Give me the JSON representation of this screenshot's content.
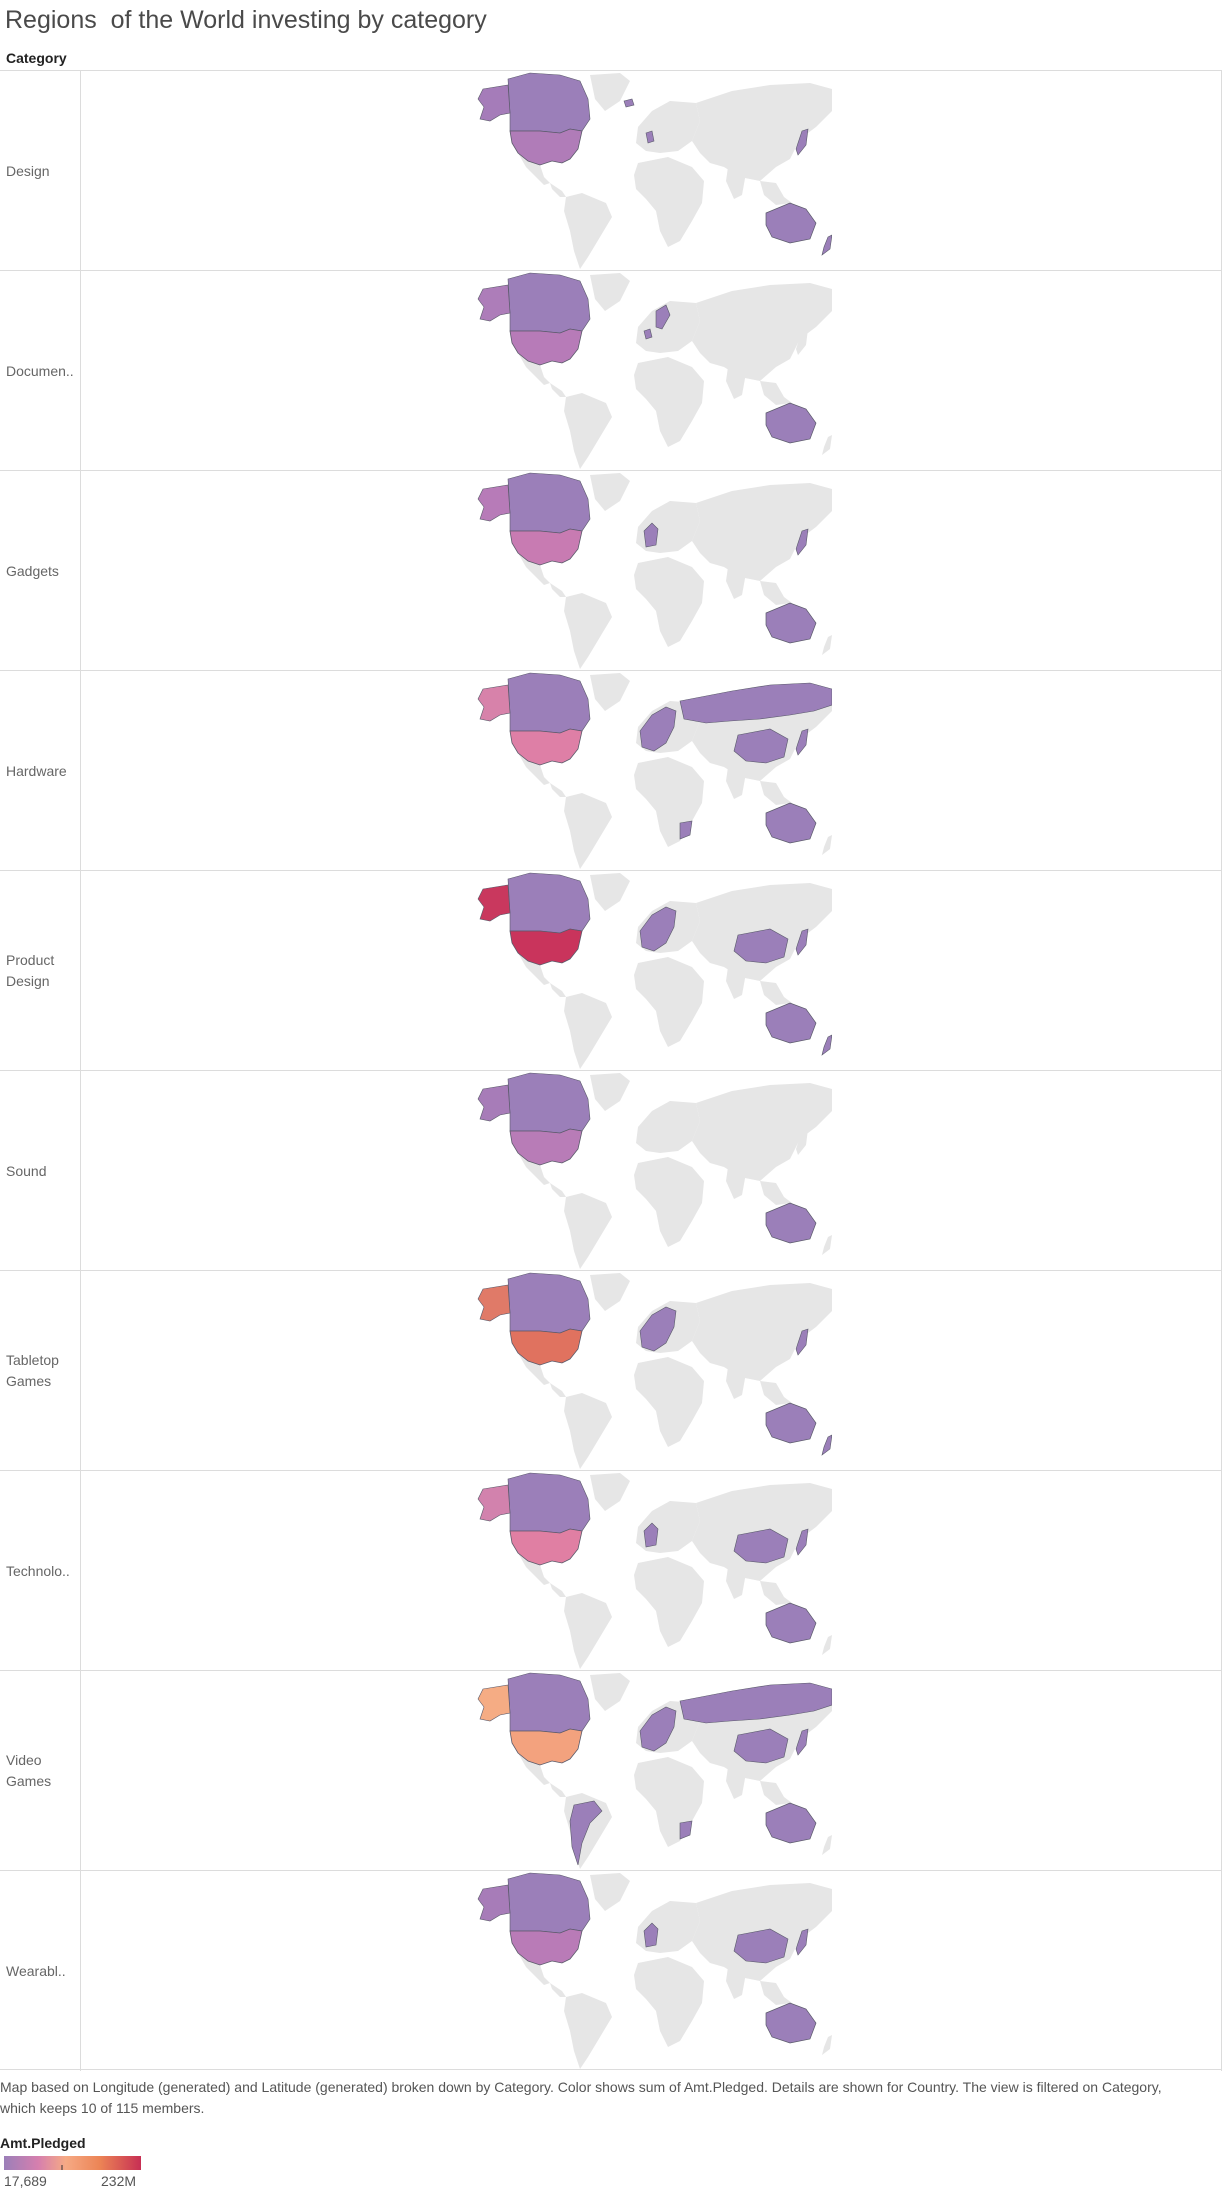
{
  "title": "Regions  of the World investing by category",
  "category_header": "Category",
  "rows": [
    {
      "label": "Design",
      "us": "#b07cb8",
      "alaska": "#a57cb9",
      "canada": "#9b7fb9",
      "europe": "minimal",
      "asia": "japan",
      "aus": true,
      "nz": true,
      "sa": false,
      "africa": false
    },
    {
      "label": "Documen..",
      "us": "#b77bb8",
      "alaska": "#ad7db9",
      "canada": "#9b7fb9",
      "europe": "norway",
      "asia": "none",
      "aus": true,
      "nz": false,
      "sa": false,
      "africa": false
    },
    {
      "label": "Gadgets",
      "us": "#c87bb2",
      "alaska": "#b77bb8",
      "canada": "#9b7fb9",
      "europe": "west",
      "asia": "japan",
      "aus": true,
      "nz": false,
      "sa": false,
      "africa": false
    },
    {
      "label": "Hardware",
      "us": "#de7fa6",
      "alaska": "#d782aa",
      "canada": "#9b7fb9",
      "europe": "full",
      "asia": "russia_china",
      "aus": true,
      "nz": false,
      "sa": false,
      "africa": true
    },
    {
      "label": "Product\nDesign",
      "us": "#c9345c",
      "alaska": "#c9385e",
      "canada": "#9b7fb9",
      "europe": "full",
      "asia": "china",
      "aus": true,
      "nz": true,
      "sa": false,
      "africa": false
    },
    {
      "label": "Sound",
      "us": "#b87cb7",
      "alaska": "#a77cb8",
      "canada": "#9b7fb9",
      "europe": "none",
      "asia": "none",
      "aus": true,
      "nz": false,
      "sa": false,
      "africa": false
    },
    {
      "label": "Tabletop\nGames",
      "us": "#e0725f",
      "alaska": "#e07a68",
      "canada": "#9b7fb9",
      "europe": "full",
      "asia": "japan",
      "aus": true,
      "nz": true,
      "sa": false,
      "africa": false
    },
    {
      "label": "Technolo..",
      "us": "#e07fa3",
      "alaska": "#d282ad",
      "canada": "#9b7fb9",
      "europe": "west",
      "asia": "china",
      "aus": true,
      "nz": false,
      "sa": false,
      "africa": false
    },
    {
      "label": "Video\nGames",
      "us": "#f3a27e",
      "alaska": "#f5ac84",
      "canada": "#9b7fb9",
      "europe": "full",
      "asia": "russia_china",
      "aus": true,
      "nz": false,
      "sa": true,
      "africa": true
    },
    {
      "label": "Wearabl..",
      "us": "#b97bb7",
      "alaska": "#a77cb8",
      "canada": "#9b7fb9",
      "europe": "west",
      "asia": "china",
      "aus": true,
      "nz": false,
      "sa": false,
      "africa": false
    }
  ],
  "footnote": "Map based on Longitude (generated) and Latitude (generated) broken down by Category.  Color shows sum of Amt.Pledged.  Details are shown for Country. The view is filtered on Category, which keeps 10 of 115 members.",
  "legend": {
    "title": "Amt.Pledged",
    "min_label": "17,689",
    "max_label": "232M"
  },
  "colors": {
    "base_country": "#9b7fb9",
    "land": "#e6e6e6",
    "border": "#5a5a6a",
    "grid_line": "#dcdcdc"
  }
}
